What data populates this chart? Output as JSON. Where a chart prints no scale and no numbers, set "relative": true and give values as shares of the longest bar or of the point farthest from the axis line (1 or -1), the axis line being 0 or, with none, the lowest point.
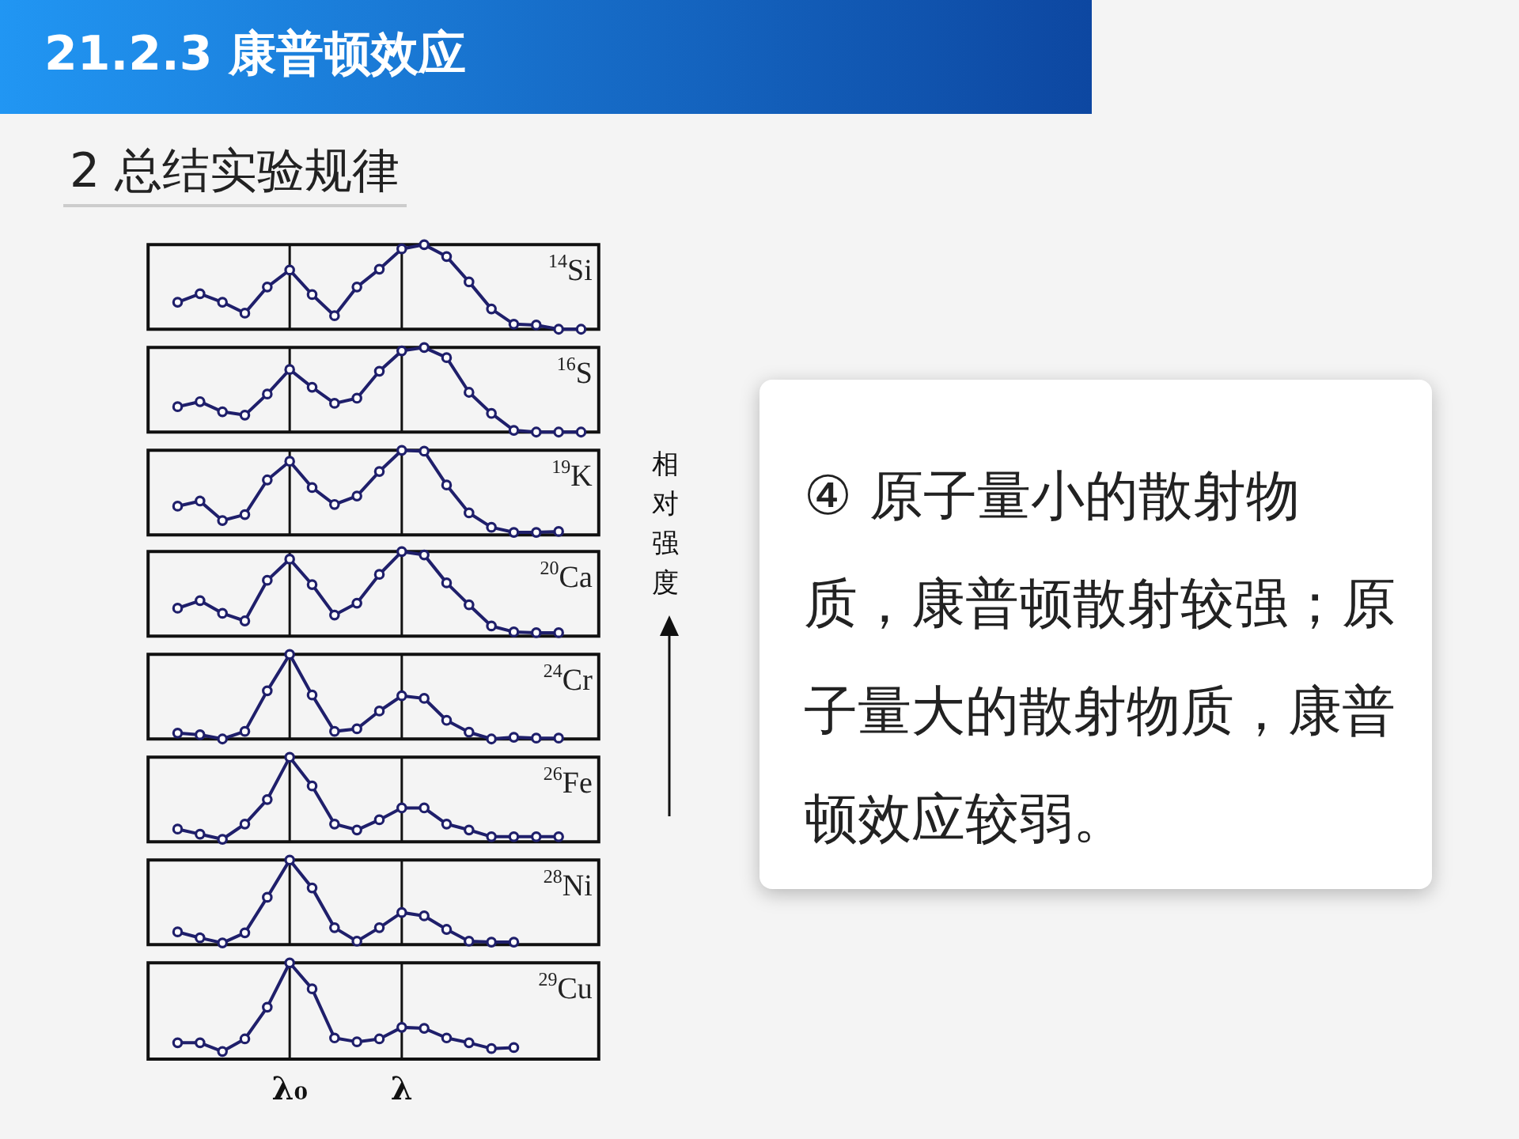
{
  "chart_data": [
    {
      "type": "line",
      "title": "21.2.3 康普顿效应",
      "subtitle": "2 总结实验规律",
      "ylabel": "相对强度",
      "annotations": [
        "④ 原子量小的散射物质，康普顿散射较强；原子量大的散射物质，康普顿效应较弱。"
      ],
      "relative": true,
      "marker": "circle",
      "line_style": "solid",
      "tick_labels": false,
      "categories": [
        null,
        null,
        null,
        null,
        null,
        null,
        null,
        null,
        null,
        null,
        null,
        null,
        null,
        null,
        null,
        null,
        null,
        null,
        null
      ],
      "series": [
        {
          "name": "$^{14}$Si",
          "color": "#1f1f6b",
          "values": [
            0.32,
            0.42,
            0.32,
            0.19,
            0.5,
            0.7,
            0.41,
            0.16,
            0.5,
            0.71,
            0.95,
            1,
            0.86,
            0.56,
            0.24,
            0.06,
            0.05,
            0,
            0
          ]
        }
      ]
    },
    {
      "type": "line",
      "relative": true,
      "marker": "circle",
      "line_style": "solid",
      "tick_labels": false,
      "categories": [
        null,
        null,
        null,
        null,
        null,
        null,
        null,
        null,
        null,
        null,
        null,
        null,
        null,
        null,
        null,
        null,
        null,
        null,
        null
      ],
      "series": [
        {
          "name": "$^{16}$S",
          "color": "#1f1f6b",
          "values": [
            0.3,
            0.36,
            0.24,
            0.2,
            0.45,
            0.74,
            0.53,
            0.34,
            0.4,
            0.72,
            0.96,
            1,
            0.88,
            0.47,
            0.22,
            0.02,
            0,
            0,
            0
          ]
        }
      ]
    },
    {
      "type": "line",
      "relative": true,
      "marker": "circle",
      "line_style": "solid",
      "tick_labels": false,
      "categories": [
        null,
        null,
        null,
        null,
        null,
        null,
        null,
        null,
        null,
        null,
        null,
        null,
        null,
        null,
        null,
        null,
        null,
        null
      ],
      "series": [
        {
          "name": "$^{19}$K",
          "color": "#1f1f6b",
          "values": [
            0.34,
            0.4,
            0.17,
            0.24,
            0.65,
            0.87,
            0.56,
            0.36,
            0.46,
            0.75,
            1,
            0.99,
            0.59,
            0.26,
            0.09,
            0.03,
            0.03,
            0.04
          ]
        }
      ]
    },
    {
      "type": "line",
      "relative": true,
      "marker": "circle",
      "line_style": "solid",
      "tick_labels": false,
      "categories": [
        null,
        null,
        null,
        null,
        null,
        null,
        null,
        null,
        null,
        null,
        null,
        null,
        null,
        null,
        null,
        null,
        null,
        null
      ],
      "series": [
        {
          "name": "$^{20}$Ca",
          "color": "#1f1f6b",
          "values": [
            0.33,
            0.42,
            0.27,
            0.18,
            0.66,
            0.91,
            0.61,
            0.25,
            0.39,
            0.73,
            1,
            0.96,
            0.63,
            0.37,
            0.12,
            0.05,
            0.04,
            0.04
          ]
        }
      ]
    },
    {
      "type": "line",
      "relative": true,
      "marker": "circle",
      "line_style": "solid",
      "tick_labels": false,
      "categories": [
        null,
        null,
        null,
        null,
        null,
        null,
        null,
        null,
        null,
        null,
        null,
        null,
        null,
        null,
        null,
        null,
        null,
        null
      ],
      "series": [
        {
          "name": "$^{24}$Cr",
          "color": "#1f1f6b",
          "values": [
            0.07,
            0.05,
            0,
            0.09,
            0.57,
            1,
            0.52,
            0.09,
            0.12,
            0.33,
            0.51,
            0.48,
            0.22,
            0.08,
            0,
            0.02,
            0.01,
            0.01
          ]
        }
      ]
    },
    {
      "type": "line",
      "relative": true,
      "marker": "circle",
      "line_style": "solid",
      "tick_labels": false,
      "categories": [
        null,
        null,
        null,
        null,
        null,
        null,
        null,
        null,
        null,
        null,
        null,
        null,
        null,
        null,
        null,
        null,
        null,
        null
      ],
      "series": [
        {
          "name": "$^{26}$Fe",
          "color": "#1f1f6b",
          "values": [
            0.15,
            0.09,
            0.03,
            0.21,
            0.5,
            1,
            0.66,
            0.21,
            0.14,
            0.26,
            0.4,
            0.4,
            0.21,
            0.14,
            0.06,
            0.06,
            0.06,
            0.06
          ]
        }
      ]
    },
    {
      "type": "line",
      "relative": true,
      "marker": "circle",
      "line_style": "solid",
      "tick_labels": false,
      "categories": [
        null,
        null,
        null,
        null,
        null,
        null,
        null,
        null,
        null,
        null,
        null,
        null,
        null,
        null,
        null,
        null
      ],
      "series": [
        {
          "name": "$^{28}$Ni",
          "color": "#1f1f6b",
          "values": [
            0.15,
            0.08,
            0.02,
            0.14,
            0.56,
            1,
            0.67,
            0.2,
            0.04,
            0.2,
            0.38,
            0.34,
            0.18,
            0.04,
            0.03,
            0.03
          ]
        }
      ]
    },
    {
      "type": "line",
      "relative": true,
      "marker": "circle",
      "line_style": "solid",
      "tick_labels": "x",
      "categories": [
        null,
        null,
        null,
        null,
        null,
        "λ₀",
        null,
        null,
        null,
        null,
        "λ",
        null,
        null,
        null,
        null,
        null
      ],
      "series": [
        {
          "name": "$^{29}$Cu",
          "color": "#1f1f6b",
          "values": [
            0.17,
            0.17,
            0.08,
            0.21,
            0.54,
            1,
            0.73,
            0.22,
            0.18,
            0.21,
            0.33,
            0.32,
            0.22,
            0.17,
            0.11,
            0.12
          ]
        }
      ]
    }
  ]
}
